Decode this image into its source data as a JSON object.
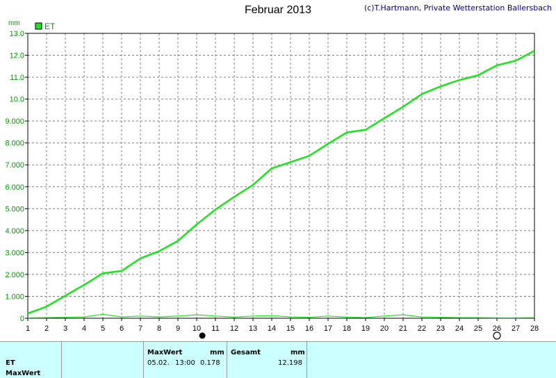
{
  "title": "Februar 2013",
  "credit": "(c)T.Hartmann, Private Wetterstation Ballersbach",
  "colors": {
    "series": "#22e022",
    "axis_text": "#009900",
    "grid": "#808080",
    "table_bg": "#ccffff"
  },
  "chart_data": {
    "type": "line",
    "ylabel": "mm",
    "ylim": [
      0,
      13
    ],
    "xlim": [
      1,
      28
    ],
    "yticks": [
      "0",
      "1.000",
      "2.000",
      "3.000",
      "4.000",
      "5.000",
      "6.000",
      "7.000",
      "8.000",
      "9.000",
      "10.0",
      "11.0",
      "12.0",
      "13.0"
    ],
    "xticks": [
      "1",
      "2",
      "3",
      "4",
      "5",
      "6",
      "7",
      "8",
      "9",
      "10",
      "11",
      "12",
      "13",
      "14",
      "15",
      "16",
      "17",
      "18",
      "19",
      "20",
      "21",
      "22",
      "23",
      "24",
      "25",
      "26",
      "27",
      "28"
    ],
    "grid": true,
    "legend": {
      "placement": "top-left",
      "entries": [
        "ET"
      ]
    },
    "series": [
      {
        "name": "ET",
        "kind": "cumulative",
        "x": [
          1,
          2,
          3,
          4,
          5,
          6,
          7,
          8,
          9,
          10,
          11,
          12,
          13,
          14,
          15,
          16,
          17,
          18,
          19,
          20,
          21,
          22,
          23,
          24,
          25,
          26,
          27,
          28
        ],
        "values": [
          0.22,
          0.53,
          1.03,
          1.52,
          2.05,
          2.16,
          2.73,
          3.06,
          3.53,
          4.28,
          4.96,
          5.54,
          6.08,
          6.84,
          7.12,
          7.41,
          7.96,
          8.48,
          8.6,
          9.13,
          9.65,
          10.23,
          10.58,
          10.87,
          11.09,
          11.54,
          11.75,
          12.2
        ]
      },
      {
        "name": "ET",
        "kind": "daily",
        "x": [
          1,
          2,
          3,
          4,
          5,
          6,
          7,
          8,
          9,
          10,
          11,
          12,
          13,
          14,
          15,
          16,
          17,
          18,
          19,
          20,
          21,
          22,
          23,
          24,
          25,
          26,
          27,
          28
        ],
        "values": [
          0.02,
          0.03,
          0.04,
          0.06,
          0.18,
          0.06,
          0.1,
          0.06,
          0.1,
          0.16,
          0.1,
          0.05,
          0.1,
          0.12,
          0.06,
          0.04,
          0.1,
          0.05,
          0.03,
          0.1,
          0.16,
          0.06,
          0.04,
          0.03,
          0.03,
          0.02,
          0.02,
          0.03
        ]
      }
    ],
    "markers": [
      {
        "x": 10.3,
        "style": "filled"
      },
      {
        "x": 26,
        "style": "hollow"
      }
    ]
  },
  "table": {
    "row_label": "ET",
    "row_label2": "MaxWert",
    "maxwert_header": "MaxWert",
    "maxwert_unit": "mm",
    "maxwert_date": "05.02.",
    "maxwert_time": "13:00",
    "maxwert_value": "0.178",
    "gesamt_header": "Gesamt",
    "gesamt_unit": "mm",
    "gesamt_value": "12.198"
  }
}
